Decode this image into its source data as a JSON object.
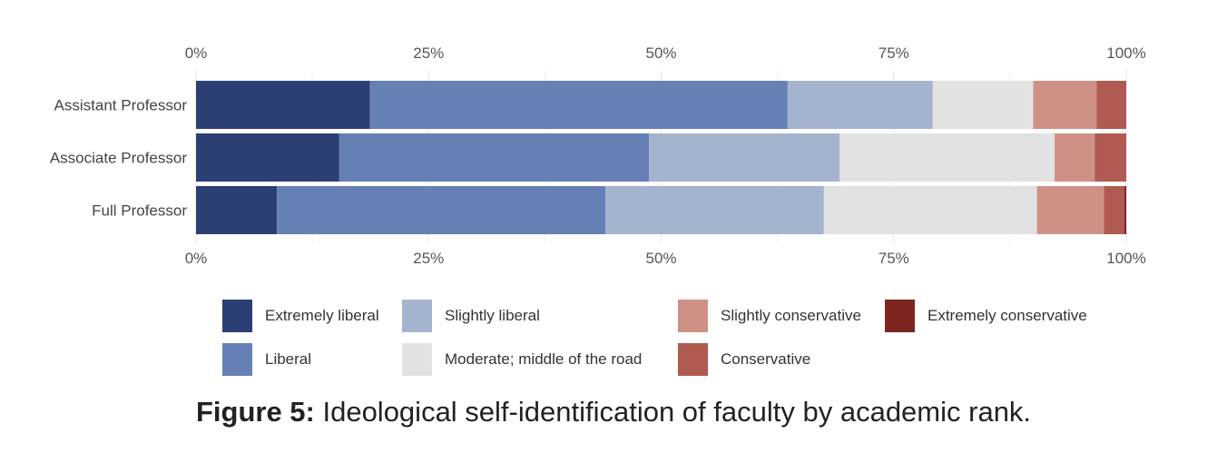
{
  "chart_data": {
    "type": "bar",
    "orientation": "horizontal",
    "stacked": true,
    "title": "",
    "xlabel": "",
    "ylabel": "",
    "xlim": [
      0,
      100
    ],
    "x_ticks": [
      "0%",
      "25%",
      "50%",
      "75%",
      "100%"
    ],
    "categories": [
      "Assistant Professor",
      "Associate Professor",
      "Full Professor"
    ],
    "series": [
      {
        "name": "Extremely liberal",
        "color": "#2b3f74",
        "values": [
          18.7,
          15.4,
          8.7
        ]
      },
      {
        "name": "Liberal",
        "color": "#6580b5",
        "values": [
          44.9,
          33.3,
          35.3
        ]
      },
      {
        "name": "Slightly liberal",
        "color": "#a4b4ce",
        "values": [
          15.6,
          20.5,
          23.5
        ]
      },
      {
        "name": "Moderate; middle of the road",
        "color": "#e2e2e2",
        "values": [
          10.8,
          23.1,
          22.9
        ]
      },
      {
        "name": "Slightly conservative",
        "color": "#cf9185",
        "values": [
          6.8,
          4.3,
          7.2
        ]
      },
      {
        "name": "Conservative",
        "color": "#b05a51",
        "values": [
          3.2,
          3.4,
          2.2
        ]
      },
      {
        "name": "Extremely conservative",
        "color": "#7d2620",
        "values": [
          0.0,
          0.0,
          0.2
        ]
      }
    ],
    "legend_position": "bottom",
    "grid": true
  },
  "legend_rows": [
    [
      "Extremely liberal",
      "Slightly liberal",
      "Slightly conservative",
      "Extremely conservative"
    ],
    [
      "Liberal",
      "Moderate; middle of the road",
      "Conservative"
    ]
  ],
  "caption": {
    "label": "Figure 5:",
    "text": " Ideological self-identification of faculty by academic rank."
  }
}
